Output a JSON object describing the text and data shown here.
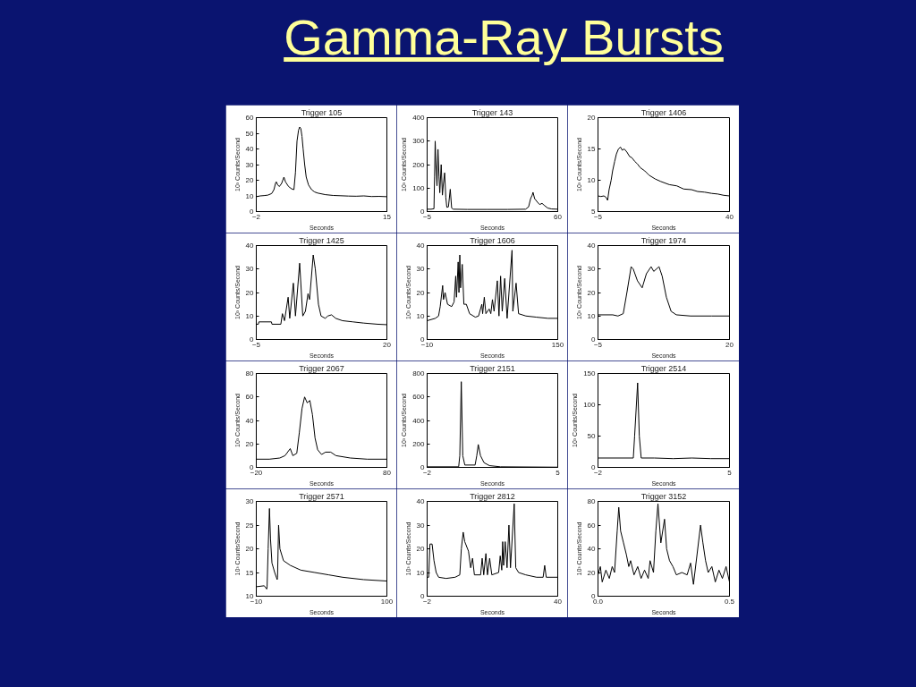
{
  "chart_data": [
    {
      "type": "other",
      "title": "Gamma-Ray Bursts"
    },
    {
      "type": "line",
      "title": "Trigger 105",
      "xlabel": "Seconds",
      "ylabel": "10³ Counts/Second",
      "color": "#000000",
      "xlim": [
        -2,
        15
      ],
      "xticks": [
        -2,
        15
      ],
      "ylim": [
        0,
        60
      ],
      "yticks": [
        0,
        10,
        20,
        30,
        40,
        50,
        60
      ],
      "x": [
        -2,
        -1.5,
        -1,
        -0.5,
        0,
        0.3,
        0.5,
        0.6,
        0.8,
        1.0,
        1.3,
        1.6,
        1.8,
        2.2,
        2.6,
        2.9,
        3.1,
        3.3,
        3.5,
        3.65,
        3.8,
        3.95,
        4.1,
        4.3,
        4.5,
        4.8,
        5.2,
        5.6,
        6,
        7,
        8,
        9,
        10,
        11,
        12,
        13,
        14,
        15
      ],
      "values": [
        9.5,
        10,
        10.2,
        10.5,
        11.5,
        14,
        18,
        19,
        17,
        16,
        18,
        22,
        19,
        16,
        14.5,
        14,
        25,
        45,
        52,
        54,
        53,
        48,
        40,
        30,
        22,
        17,
        14,
        12.5,
        11.8,
        10.8,
        10.3,
        10.1,
        9.9,
        9.8,
        10,
        9.6,
        9.7,
        9.5
      ]
    },
    {
      "type": "line",
      "title": "Trigger 143",
      "xlabel": "Seconds",
      "ylabel": "10³ Counts/Second",
      "color": "#000000",
      "xlim": [
        -5,
        60
      ],
      "xticks": [
        -5,
        60
      ],
      "ylim": [
        0,
        400
      ],
      "yticks": [
        0,
        100,
        200,
        300,
        400
      ],
      "x": [
        -5,
        -3,
        -1.6,
        -1.3,
        -1.0,
        -0.6,
        -0.1,
        0.4,
        0.9,
        1.3,
        2.0,
        2.6,
        3.1,
        3.7,
        4.3,
        4.8,
        5.6,
        6.5,
        7.2,
        8,
        15,
        25,
        35,
        44,
        45.5,
        46.5,
        47.3,
        47.7,
        48.5,
        49.9,
        51,
        52.2,
        53.5,
        55,
        57,
        60
      ],
      "values": [
        10,
        10,
        12,
        150,
        300,
        200,
        110,
        265,
        150,
        80,
        200,
        70,
        120,
        165,
        60,
        18,
        20,
        95,
        15,
        10,
        9,
        9,
        9,
        10,
        20,
        55,
        70,
        82,
        55,
        40,
        30,
        35,
        25,
        15,
        11,
        10
      ]
    },
    {
      "type": "line",
      "title": "Trigger 1406",
      "xlabel": "Seconds",
      "ylabel": "10³ Counts/Second",
      "color": "#000000",
      "xlim": [
        -5,
        40
      ],
      "xticks": [
        -5,
        40
      ],
      "ylim": [
        5,
        20
      ],
      "yticks": [
        5,
        10,
        15,
        20
      ],
      "x": [
        -5,
        -4,
        -3,
        -2.3,
        -1.7,
        -1.2,
        -0.5,
        0,
        0.7,
        1.3,
        2,
        2.7,
        3.3,
        4,
        4.9,
        5.8,
        6.6,
        7.6,
        8.5,
        9.5,
        11,
        12.5,
        14.6,
        16.5,
        19.4,
        22,
        24.3,
        27,
        29.1,
        31.5,
        33.9,
        36,
        38,
        40
      ],
      "values": [
        7.5,
        7.4,
        7.5,
        7.3,
        6.8,
        8.5,
        10,
        11.5,
        13,
        14.2,
        15,
        15.3,
        14.8,
        15,
        14.5,
        13.8,
        13.6,
        13,
        12.6,
        12,
        11.5,
        10.8,
        10.2,
        9.8,
        9.3,
        9.1,
        8.6,
        8.5,
        8.2,
        8.1,
        7.9,
        7.8,
        7.6,
        7.5
      ]
    },
    {
      "type": "line",
      "title": "Trigger 1425",
      "xlabel": "Seconds",
      "ylabel": "10³ Counts/Second",
      "color": "#000000",
      "xlim": [
        -5,
        20
      ],
      "xticks": [
        -5,
        20
      ],
      "ylim": [
        0,
        40
      ],
      "yticks": [
        0,
        10,
        20,
        30,
        40
      ],
      "x": [
        -5,
        -4.6,
        -4.5,
        -2.1,
        -2.0,
        -0.3,
        0,
        0.4,
        1.1,
        1.4,
        2.1,
        2.5,
        3.3,
        3.9,
        4.4,
        4.9,
        5.2,
        5.9,
        6.3,
        6.9,
        7.4,
        8.2,
        8.7,
        9.4,
        10.2,
        11.5,
        13.5,
        15.5,
        18.2,
        20
      ],
      "values": [
        6.5,
        6.5,
        7.5,
        7.5,
        6.5,
        6.5,
        11,
        8,
        18,
        9,
        24,
        10,
        32.5,
        10,
        12,
        19.5,
        17,
        36,
        30,
        15,
        10,
        9,
        10,
        10.5,
        9,
        8,
        7.5,
        7,
        6.5,
        6.3
      ]
    },
    {
      "type": "line",
      "title": "Trigger 1606",
      "xlabel": "Seconds",
      "ylabel": "10³ Counts/Second",
      "color": "#000000",
      "xlim": [
        -10,
        150
      ],
      "xticks": [
        -10,
        150
      ],
      "ylim": [
        0,
        40
      ],
      "yticks": [
        0,
        10,
        20,
        30,
        40
      ],
      "x": [
        -10,
        0,
        4,
        6,
        9,
        10,
        12,
        15,
        20,
        23,
        25,
        26,
        28,
        29,
        30,
        31,
        33,
        35,
        38,
        42,
        49,
        53,
        57,
        58,
        60,
        62,
        66,
        68,
        70,
        72,
        76,
        78,
        80,
        82,
        85,
        88,
        94,
        95,
        99,
        102,
        111,
        124,
        138,
        150
      ],
      "values": [
        8,
        9,
        10,
        14,
        23,
        17,
        20,
        15,
        14,
        16,
        27,
        18,
        33,
        20,
        36,
        22,
        32,
        15,
        15,
        11,
        9.5,
        10,
        15,
        11,
        18,
        11,
        13,
        11,
        17,
        12,
        25,
        10,
        27,
        12,
        26,
        9,
        38,
        12,
        24,
        11,
        10,
        9.5,
        9,
        9
      ]
    },
    {
      "type": "line",
      "title": "Trigger 1974",
      "xlabel": "Seconds",
      "ylabel": "10³ Counts/Second",
      "color": "#000000",
      "xlim": [
        -5,
        20
      ],
      "xticks": [
        -5,
        20
      ],
      "ylim": [
        0,
        40
      ],
      "yticks": [
        0,
        10,
        20,
        30,
        40
      ],
      "x": [
        -5,
        -2.2,
        -1.2,
        -0.2,
        0.5,
        1.3,
        1.7,
        2.5,
        3.4,
        4.2,
        5.1,
        5.6,
        6.6,
        7.2,
        8,
        8.9,
        9.9,
        12.6,
        16.6,
        20
      ],
      "values": [
        10.5,
        10.5,
        10,
        11,
        20,
        31,
        30,
        25,
        22,
        28,
        31,
        29,
        31,
        27,
        18,
        12,
        10.5,
        10,
        10,
        10
      ]
    },
    {
      "type": "line",
      "title": "Trigger 2067",
      "xlabel": "Seconds",
      "ylabel": "10³ Counts/Second",
      "color": "#000000",
      "xlim": [
        -20,
        80
      ],
      "xticks": [
        -20,
        80
      ],
      "ylim": [
        0,
        80
      ],
      "yticks": [
        0,
        20,
        40,
        60,
        80
      ],
      "x": [
        -20,
        -10,
        -2,
        2,
        6,
        8,
        11,
        13,
        15,
        17,
        19,
        21,
        23,
        25,
        27,
        30,
        33,
        37,
        41,
        52,
        65,
        80
      ],
      "values": [
        7,
        7,
        8,
        10,
        16,
        10,
        12,
        30,
        50,
        60,
        55,
        57,
        45,
        25,
        15,
        11,
        13,
        13,
        10,
        8,
        7,
        7
      ]
    },
    {
      "type": "line",
      "title": "Trigger 2151",
      "xlabel": "Seconds",
      "ylabel": "10³ Counts/Second",
      "color": "#000000",
      "xlim": [
        -2,
        5
      ],
      "xticks": [
        -2,
        5
      ],
      "ylim": [
        0,
        800
      ],
      "yticks": [
        0,
        200,
        400,
        600,
        800
      ],
      "x": [
        -2,
        -0.31,
        -0.25,
        -0.17,
        -0.09,
        0.02,
        0.57,
        0.66,
        0.74,
        0.86,
        1.05,
        1.34,
        1.93,
        5
      ],
      "values": [
        5,
        5,
        100,
        730,
        100,
        20,
        20,
        100,
        195,
        100,
        40,
        15,
        5,
        2
      ]
    },
    {
      "type": "line",
      "title": "Trigger 2514",
      "xlabel": "Seconds",
      "ylabel": "10³ Counts/Second",
      "color": "#000000",
      "xlim": [
        -2,
        5
      ],
      "xticks": [
        -2,
        5
      ],
      "ylim": [
        0,
        150
      ],
      "yticks": [
        0,
        50,
        100,
        150
      ],
      "x": [
        -2,
        -0.12,
        -0.05,
        0.11,
        0.2,
        0.3,
        1,
        2,
        3,
        4,
        5
      ],
      "values": [
        15,
        15,
        50,
        135,
        50,
        15,
        15,
        14,
        15,
        14,
        14
      ]
    },
    {
      "type": "line",
      "title": "Trigger 2571",
      "xlabel": "Seconds",
      "ylabel": "10³ Counts/Second",
      "color": "#000000",
      "xlim": [
        -10,
        100
      ],
      "xticks": [
        -10,
        100
      ],
      "ylim": [
        10,
        30
      ],
      "yticks": [
        10,
        15,
        20,
        25,
        30
      ],
      "x": [
        -10,
        -3.3,
        -1.2,
        -0.9,
        0,
        1.1,
        2,
        3.2,
        5.5,
        7.6,
        7.9,
        8.8,
        9.9,
        12.9,
        18.7,
        27.5,
        39.3,
        51,
        62.7,
        80.3,
        100
      ],
      "values": [
        12,
        12.2,
        11.5,
        12,
        20,
        28.5,
        22,
        17,
        15,
        13.5,
        14,
        25,
        20,
        17.5,
        16.5,
        15.5,
        15,
        14.5,
        14,
        13.5,
        13.2
      ]
    },
    {
      "type": "line",
      "title": "Trigger 2812",
      "xlabel": "Seconds",
      "ylabel": "10³ Counts/Second",
      "color": "#000000",
      "xlim": [
        -2,
        40
      ],
      "xticks": [
        -2,
        40
      ],
      "ylim": [
        0,
        40
      ],
      "yticks": [
        0,
        10,
        20,
        30,
        40
      ],
      "x": [
        -2,
        -1.5,
        -1.1,
        -0.4,
        0.2,
        0.9,
        1.7,
        4.1,
        7,
        8.5,
        9,
        9.6,
        10.1,
        11.3,
        12,
        12.6,
        13.2,
        15.2,
        15.7,
        16.2,
        16.9,
        17.4,
        18.1,
        18.8,
        21,
        21.5,
        22,
        22.3,
        22.6,
        23.1,
        23.7,
        24.3,
        24.8,
        26,
        26.5,
        27.4,
        29.7,
        33.2,
        35.3,
        35.8,
        36.3,
        40
      ],
      "values": [
        8,
        8,
        22,
        22,
        15,
        10,
        8,
        7.5,
        8,
        9,
        20,
        27,
        23,
        19,
        12,
        16,
        9,
        9,
        16,
        9,
        18,
        9,
        16,
        9,
        10,
        17,
        11,
        23,
        13,
        23,
        12,
        30,
        12,
        39,
        12,
        10,
        9,
        8,
        8,
        13,
        8,
        8
      ]
    },
    {
      "type": "line",
      "title": "Trigger 3152",
      "xlabel": "Seconds",
      "ylabel": "10³ Counts/Second",
      "color": "#000000",
      "xlim": [
        0,
        0.5
      ],
      "xticks": [
        {
          "value": 0,
          "label": "0.0"
        },
        0.5
      ],
      "ylim": [
        0,
        80
      ],
      "yticks": [
        0,
        20,
        40,
        60,
        80
      ],
      "x": [
        0,
        0.009,
        0.016,
        0.03,
        0.043,
        0.054,
        0.063,
        0.073,
        0.079,
        0.086,
        0.097,
        0.108,
        0.117,
        0.124,
        0.137,
        0.151,
        0.164,
        0.177,
        0.191,
        0.198,
        0.211,
        0.22,
        0.228,
        0.234,
        0.239,
        0.253,
        0.261,
        0.272,
        0.285,
        0.298,
        0.319,
        0.339,
        0.352,
        0.363,
        0.39,
        0.399,
        0.409,
        0.419,
        0.433,
        0.446,
        0.46,
        0.473,
        0.487,
        0.5
      ],
      "values": [
        18,
        25,
        12,
        22,
        15,
        25,
        20,
        55,
        75,
        55,
        45,
        35,
        25,
        30,
        18,
        25,
        15,
        22,
        15,
        30,
        20,
        55,
        78,
        60,
        45,
        65,
        40,
        30,
        25,
        18,
        20,
        18,
        28,
        10,
        60,
        45,
        30,
        20,
        25,
        12,
        22,
        15,
        25,
        12
      ]
    }
  ]
}
